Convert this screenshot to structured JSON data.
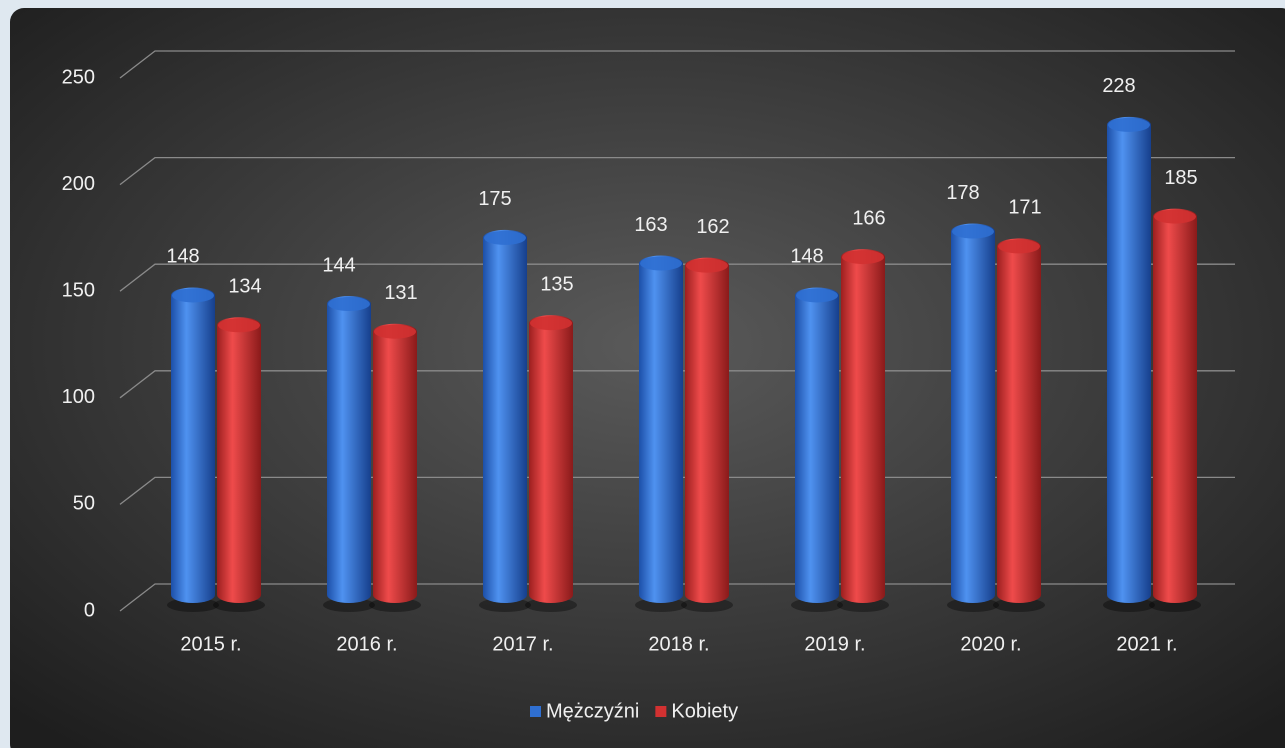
{
  "chart_data": {
    "type": "bar",
    "categories": [
      "2015 r.",
      "2016 r.",
      "2017 r.",
      "2018 r.",
      "2019 r.",
      "2020 r.",
      "2021 r."
    ],
    "series": [
      {
        "name": "Mężczyźni",
        "color": "#2f6fd1",
        "values": [
          148,
          144,
          175,
          163,
          148,
          178,
          228
        ]
      },
      {
        "name": "Kobiety",
        "color": "#d23131",
        "values": [
          134,
          131,
          135,
          162,
          166,
          171,
          185
        ]
      }
    ],
    "ylim": [
      0,
      250
    ],
    "yticks": [
      0,
      50,
      100,
      150,
      200,
      250
    ],
    "grid": true,
    "legend": "bottom"
  }
}
